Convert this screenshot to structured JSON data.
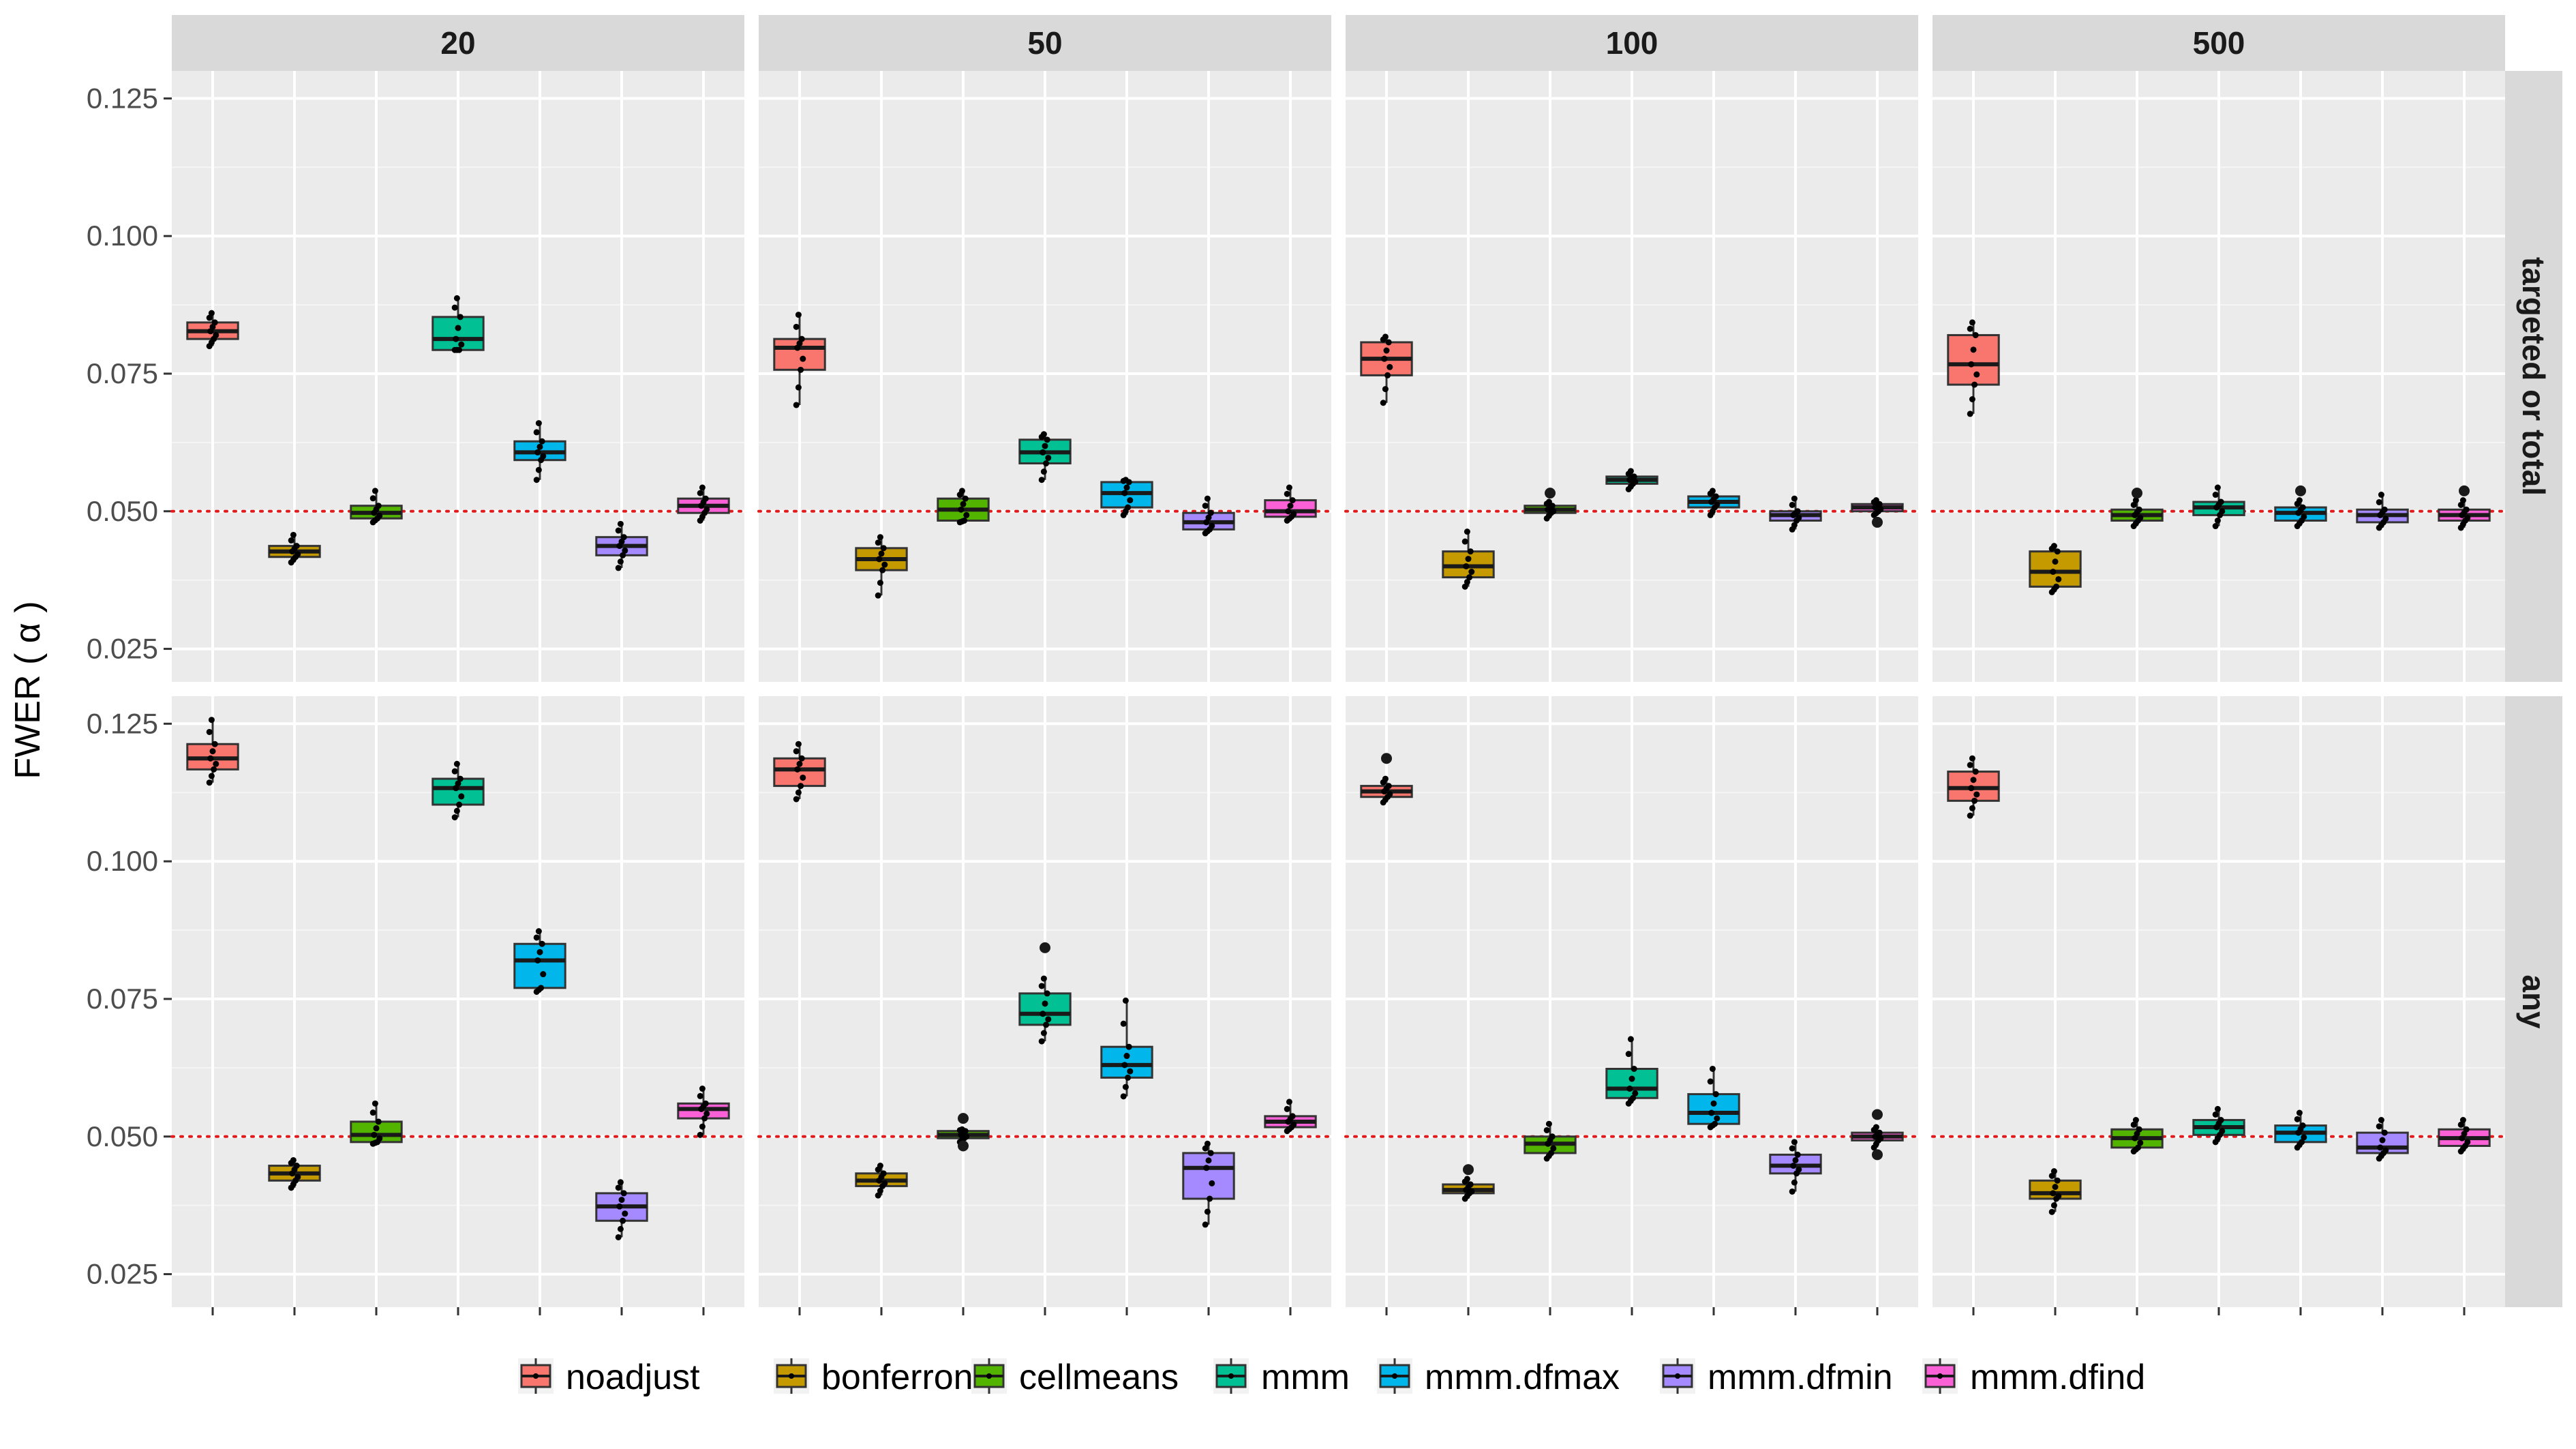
{
  "chart_data": {
    "type": "boxplot",
    "ylabel": "FWER ( α )",
    "ylim": [
      0.019,
      0.13
    ],
    "yticks": [
      0.025,
      0.05,
      0.075,
      0.1,
      0.125
    ],
    "ytick_labels": [
      "0.025",
      "0.050",
      "0.075",
      "0.100",
      "0.125"
    ],
    "reference_line": 0.05,
    "column_facets": [
      "20",
      "50",
      "100",
      "500"
    ],
    "row_facets": [
      "targeted or total",
      "any"
    ],
    "methods": [
      "noadjust",
      "bonferroni",
      "cellmeans",
      "mmm",
      "mmm.dfmax",
      "mmm.dfmin",
      "mmm.dfind"
    ],
    "colors": [
      "#F8766D",
      "#C49A00",
      "#53B400",
      "#00C094",
      "#00B6EB",
      "#A58AFF",
      "#FB61D7"
    ],
    "panels": [
      {
        "row": "targeted or total",
        "col": "20",
        "boxes": [
          {
            "q1": 0.0813,
            "median": 0.0827,
            "q3": 0.0843,
            "lo": 0.08,
            "hi": 0.086
          },
          {
            "q1": 0.0417,
            "median": 0.0427,
            "q3": 0.0437,
            "lo": 0.0407,
            "hi": 0.0457
          },
          {
            "q1": 0.0487,
            "median": 0.0497,
            "q3": 0.051,
            "lo": 0.048,
            "hi": 0.0537
          },
          {
            "q1": 0.0793,
            "median": 0.0813,
            "q3": 0.0853,
            "lo": 0.0793,
            "hi": 0.0887
          },
          {
            "q1": 0.0593,
            "median": 0.0607,
            "q3": 0.0627,
            "lo": 0.0557,
            "hi": 0.066
          },
          {
            "q1": 0.042,
            "median": 0.0437,
            "q3": 0.0453,
            "lo": 0.0397,
            "hi": 0.0477
          },
          {
            "q1": 0.0497,
            "median": 0.051,
            "q3": 0.0523,
            "lo": 0.0483,
            "hi": 0.0543
          }
        ]
      },
      {
        "row": "targeted or total",
        "col": "50",
        "boxes": [
          {
            "q1": 0.0757,
            "median": 0.0797,
            "q3": 0.0813,
            "lo": 0.0693,
            "hi": 0.0857
          },
          {
            "q1": 0.0393,
            "median": 0.0413,
            "q3": 0.0433,
            "lo": 0.0347,
            "hi": 0.0453
          },
          {
            "q1": 0.0483,
            "median": 0.0503,
            "q3": 0.0523,
            "lo": 0.048,
            "hi": 0.0537
          },
          {
            "q1": 0.0587,
            "median": 0.0607,
            "q3": 0.063,
            "lo": 0.0557,
            "hi": 0.064
          },
          {
            "q1": 0.0507,
            "median": 0.0533,
            "q3": 0.0553,
            "lo": 0.0493,
            "hi": 0.0557
          },
          {
            "q1": 0.0467,
            "median": 0.048,
            "q3": 0.0497,
            "lo": 0.046,
            "hi": 0.0523
          },
          {
            "q1": 0.049,
            "median": 0.05,
            "q3": 0.052,
            "lo": 0.0483,
            "hi": 0.0543
          }
        ]
      },
      {
        "row": "targeted or total",
        "col": "100",
        "boxes": [
          {
            "q1": 0.0747,
            "median": 0.0777,
            "q3": 0.0807,
            "lo": 0.0697,
            "hi": 0.0817
          },
          {
            "q1": 0.038,
            "median": 0.04,
            "q3": 0.0427,
            "lo": 0.0363,
            "hi": 0.0463
          },
          {
            "q1": 0.0497,
            "median": 0.0503,
            "q3": 0.051,
            "lo": 0.0487,
            "hi": 0.0517,
            "outliers": [
              0.0533
            ]
          },
          {
            "q1": 0.055,
            "median": 0.0557,
            "q3": 0.0563,
            "lo": 0.054,
            "hi": 0.0573
          },
          {
            "q1": 0.0507,
            "median": 0.0517,
            "q3": 0.0527,
            "lo": 0.0493,
            "hi": 0.0537
          },
          {
            "q1": 0.0483,
            "median": 0.0493,
            "q3": 0.05,
            "lo": 0.0467,
            "hi": 0.0523
          },
          {
            "q1": 0.05,
            "median": 0.0507,
            "q3": 0.0513,
            "lo": 0.0493,
            "hi": 0.052,
            "outliers": [
              0.048
            ]
          }
        ]
      },
      {
        "row": "targeted or total",
        "col": "500",
        "boxes": [
          {
            "q1": 0.073,
            "median": 0.0767,
            "q3": 0.082,
            "lo": 0.0677,
            "hi": 0.0843
          },
          {
            "q1": 0.0363,
            "median": 0.039,
            "q3": 0.0427,
            "lo": 0.0353,
            "hi": 0.0437
          },
          {
            "q1": 0.0483,
            "median": 0.0493,
            "q3": 0.0503,
            "lo": 0.0473,
            "hi": 0.052,
            "outliers": [
              0.0533
            ]
          },
          {
            "q1": 0.0493,
            "median": 0.0507,
            "q3": 0.0517,
            "lo": 0.0473,
            "hi": 0.0543
          },
          {
            "q1": 0.0483,
            "median": 0.0497,
            "q3": 0.0507,
            "lo": 0.0473,
            "hi": 0.052,
            "outliers": [
              0.0537
            ]
          },
          {
            "q1": 0.048,
            "median": 0.0493,
            "q3": 0.0503,
            "lo": 0.047,
            "hi": 0.053
          },
          {
            "q1": 0.0483,
            "median": 0.0493,
            "q3": 0.0503,
            "lo": 0.047,
            "hi": 0.052,
            "outliers": [
              0.0537
            ]
          }
        ]
      },
      {
        "row": "any",
        "col": "20",
        "boxes": [
          {
            "q1": 0.1167,
            "median": 0.1187,
            "q3": 0.1213,
            "lo": 0.1143,
            "hi": 0.1257
          },
          {
            "q1": 0.042,
            "median": 0.0433,
            "q3": 0.0447,
            "lo": 0.0407,
            "hi": 0.0457
          },
          {
            "q1": 0.049,
            "median": 0.0503,
            "q3": 0.0527,
            "lo": 0.0487,
            "hi": 0.056
          },
          {
            "q1": 0.1103,
            "median": 0.1133,
            "q3": 0.115,
            "lo": 0.108,
            "hi": 0.1177
          },
          {
            "q1": 0.077,
            "median": 0.082,
            "q3": 0.085,
            "lo": 0.0763,
            "hi": 0.0873
          },
          {
            "q1": 0.0347,
            "median": 0.0373,
            "q3": 0.0397,
            "lo": 0.0317,
            "hi": 0.0417
          },
          {
            "q1": 0.0533,
            "median": 0.055,
            "q3": 0.056,
            "lo": 0.0503,
            "hi": 0.0587
          }
        ]
      },
      {
        "row": "any",
        "col": "50",
        "boxes": [
          {
            "q1": 0.1137,
            "median": 0.1167,
            "q3": 0.1187,
            "lo": 0.1113,
            "hi": 0.1213
          },
          {
            "q1": 0.041,
            "median": 0.042,
            "q3": 0.0433,
            "lo": 0.0393,
            "hi": 0.0447
          },
          {
            "q1": 0.0497,
            "median": 0.0503,
            "q3": 0.051,
            "lo": 0.049,
            "hi": 0.0513,
            "outliers": [
              0.0533,
              0.0483
            ]
          },
          {
            "q1": 0.0703,
            "median": 0.0723,
            "q3": 0.076,
            "lo": 0.0673,
            "hi": 0.0787,
            "outliers": [
              0.0843
            ]
          },
          {
            "q1": 0.0607,
            "median": 0.063,
            "q3": 0.0663,
            "lo": 0.0573,
            "hi": 0.0747
          },
          {
            "q1": 0.0387,
            "median": 0.0443,
            "q3": 0.047,
            "lo": 0.034,
            "hi": 0.0487
          },
          {
            "q1": 0.0517,
            "median": 0.0527,
            "q3": 0.0537,
            "lo": 0.051,
            "hi": 0.0563
          }
        ]
      },
      {
        "row": "any",
        "col": "100",
        "boxes": [
          {
            "q1": 0.1117,
            "median": 0.1127,
            "q3": 0.1137,
            "lo": 0.1107,
            "hi": 0.115,
            "outliers": [
              0.1187
            ]
          },
          {
            "q1": 0.0397,
            "median": 0.0403,
            "q3": 0.0413,
            "lo": 0.0387,
            "hi": 0.0423,
            "outliers": [
              0.044
            ]
          },
          {
            "q1": 0.047,
            "median": 0.0487,
            "q3": 0.05,
            "lo": 0.046,
            "hi": 0.0523
          },
          {
            "q1": 0.057,
            "median": 0.0587,
            "q3": 0.0623,
            "lo": 0.056,
            "hi": 0.0677
          },
          {
            "q1": 0.0523,
            "median": 0.0543,
            "q3": 0.0577,
            "lo": 0.0517,
            "hi": 0.0623
          },
          {
            "q1": 0.0433,
            "median": 0.0447,
            "q3": 0.0467,
            "lo": 0.04,
            "hi": 0.049
          },
          {
            "q1": 0.0493,
            "median": 0.05,
            "q3": 0.0507,
            "lo": 0.048,
            "hi": 0.0517,
            "outliers": [
              0.054,
              0.0467
            ]
          }
        ]
      },
      {
        "row": "any",
        "col": "500",
        "boxes": [
          {
            "q1": 0.111,
            "median": 0.1133,
            "q3": 0.1163,
            "lo": 0.1083,
            "hi": 0.1187
          },
          {
            "q1": 0.0387,
            "median": 0.0397,
            "q3": 0.042,
            "lo": 0.0363,
            "hi": 0.0437
          },
          {
            "q1": 0.048,
            "median": 0.0497,
            "q3": 0.0513,
            "lo": 0.0473,
            "hi": 0.053
          },
          {
            "q1": 0.0503,
            "median": 0.0517,
            "q3": 0.053,
            "lo": 0.049,
            "hi": 0.055
          },
          {
            "q1": 0.049,
            "median": 0.0507,
            "q3": 0.052,
            "lo": 0.048,
            "hi": 0.0543
          },
          {
            "q1": 0.047,
            "median": 0.048,
            "q3": 0.0507,
            "lo": 0.046,
            "hi": 0.053
          },
          {
            "q1": 0.0483,
            "median": 0.0497,
            "q3": 0.0513,
            "lo": 0.0473,
            "hi": 0.053
          }
        ]
      }
    ]
  }
}
